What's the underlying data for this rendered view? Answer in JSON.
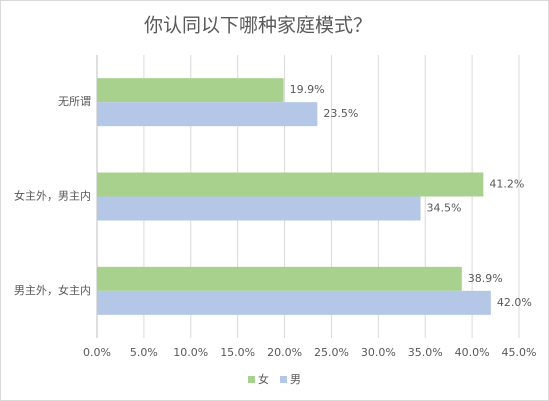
{
  "chart_data": {
    "type": "hbar",
    "title": "你认同以下哪种家庭模式？",
    "categories": [
      "无所谓",
      "女主外，男主内",
      "男主外，女主内"
    ],
    "series": [
      {
        "name": "女",
        "color": "#a9d18e",
        "values": [
          19.9,
          41.2,
          38.9
        ],
        "value_labels": [
          "19.9%",
          "41.2%",
          "38.9%"
        ]
      },
      {
        "name": "男",
        "color": "#b4c7e7",
        "values": [
          23.5,
          34.5,
          42.0
        ],
        "value_labels": [
          "23.5%",
          "34.5%",
          "42.0%"
        ]
      }
    ],
    "xlim": [
      0,
      45
    ],
    "xticks": [
      {
        "value": 0,
        "label": "0.0%"
      },
      {
        "value": 5,
        "label": "5.0%"
      },
      {
        "value": 10,
        "label": "10.0%"
      },
      {
        "value": 15,
        "label": "15.0%"
      },
      {
        "value": 20,
        "label": "20.0%"
      },
      {
        "value": 25,
        "label": "25.0%"
      },
      {
        "value": 30,
        "label": "30.0%"
      },
      {
        "value": 35,
        "label": "35.0%"
      },
      {
        "value": 40,
        "label": "40.0%"
      },
      {
        "value": 45,
        "label": "45.0%"
      }
    ],
    "grid": true,
    "legend": "bottom"
  }
}
